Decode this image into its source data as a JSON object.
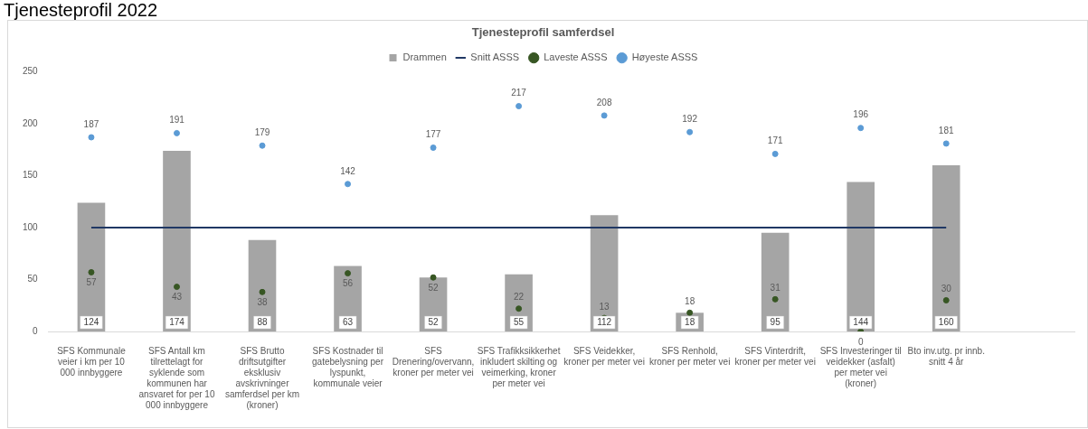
{
  "chart_data": {
    "type": "bar",
    "title": "Tjenesteprofil samferdsel",
    "annotations": [
      "Tjenesteprofil 2022"
    ],
    "categories": [
      "SFS Kommunale veier i km per 10 000 innbyggere",
      "SFS Antall km tilrettelagt for syklende som kommunen har ansvaret for per 10 000 innbyggere",
      "SFS Brutto driftsutgifter eksklusiv avskrivninger samferdsel per km (kroner)",
      "SFS Kostnader til gatebelysning per lyspunkt, kommunale veier",
      "SFS Drenering/overvann, kroner per meter vei",
      "SFS Trafikksikkerhet inkludert skilting og veimerking, kroner per meter vei",
      "SFS Veidekker, kroner per meter vei",
      "SFS Renhold, kroner per meter vei",
      "SFS Vinterdrift, kroner per meter vei",
      "SFS Investeringer til veidekker (asfalt) per meter vei (kroner)",
      "Bto inv.utg. pr innb. snitt 4 år",
      null
    ],
    "series": [
      {
        "name": "Drammen",
        "color": "#a5a5a5",
        "values": [
          124,
          174,
          88,
          63,
          52,
          55,
          112,
          18,
          95,
          144,
          160,
          null
        ],
        "value_labels": [
          "124",
          "174",
          "88",
          "63",
          "52",
          "55",
          "112",
          "18",
          "95",
          "144",
          "160",
          null
        ]
      },
      {
        "name": "Snitt ASSS",
        "type": "line",
        "color": "#203864",
        "marker": "none",
        "values": [
          100,
          100,
          100,
          100,
          100,
          100,
          100,
          100,
          100,
          100,
          100,
          null
        ]
      },
      {
        "name": "Laveste ASSS",
        "type": "scatter",
        "color": "#375623",
        "marker": "circle",
        "values": [
          57,
          43,
          38,
          56,
          52,
          22,
          13,
          18,
          31,
          0,
          30,
          null
        ],
        "value_labels": [
          "57",
          "43",
          "38",
          "56",
          "52",
          "22",
          "13",
          "18",
          "31",
          "0",
          "30",
          null
        ]
      },
      {
        "name": "Høyeste ASSS",
        "type": "scatter",
        "color": "#5b9bd5",
        "marker": "circle",
        "values": [
          187,
          191,
          179,
          142,
          177,
          217,
          208,
          192,
          171,
          196,
          181,
          null
        ],
        "value_labels": [
          "187",
          "191",
          "179",
          "142",
          "177",
          "217",
          "208",
          "192",
          "171",
          "196",
          "181",
          null
        ]
      }
    ],
    "ylim": [
      0,
      250
    ],
    "yticks": [
      0,
      50,
      100,
      150,
      200,
      250
    ],
    "grid": false,
    "legend": "top"
  }
}
